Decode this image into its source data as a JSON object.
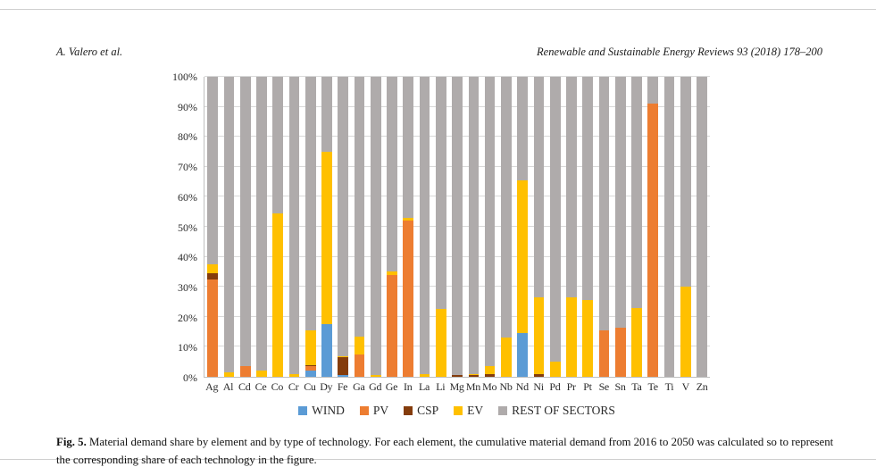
{
  "page": {
    "header_left": "A. Valero et al.",
    "header_right": "Renewable and Sustainable Energy Reviews 93 (2018) 178–200"
  },
  "figure": {
    "caption_label": "Fig. 5.",
    "caption_text": " Material demand share by element and by type of technology. For each element, the cumulative material demand from 2016 to 2050 was calculated so to represent the corresponding share of each technology in the figure."
  },
  "chart_data": {
    "type": "bar",
    "stacked": true,
    "title": "",
    "xlabel": "",
    "ylabel": "",
    "ylim": [
      0,
      100
    ],
    "grid": true,
    "legend_position": "bottom",
    "y_ticks": [
      "0%",
      "10%",
      "20%",
      "30%",
      "40%",
      "50%",
      "60%",
      "70%",
      "80%",
      "90%",
      "100%"
    ],
    "categories": [
      "Ag",
      "Al",
      "Cd",
      "Ce",
      "Co",
      "Cr",
      "Cu",
      "Dy",
      "Fe",
      "Ga",
      "Gd",
      "Ge",
      "In",
      "La",
      "Li",
      "Mg",
      "Mn",
      "Mo",
      "Nb",
      "Nd",
      "Ni",
      "Pd",
      "Pr",
      "Pt",
      "Se",
      "Sn",
      "Ta",
      "Te",
      "Ti",
      "V",
      "Zn"
    ],
    "series": [
      {
        "name": "WIND",
        "color": "#5B9BD5",
        "values": [
          0,
          0,
          0,
          0,
          0,
          0,
          2,
          17.5,
          0.5,
          0,
          0,
          0,
          0,
          0,
          0,
          0,
          0,
          0,
          0,
          14.5,
          0,
          0,
          0,
          0,
          0,
          0,
          0,
          0,
          0,
          0,
          0
        ]
      },
      {
        "name": "PV",
        "color": "#ED7D31",
        "values": [
          32.5,
          0,
          3.5,
          0,
          0,
          0,
          1.5,
          0,
          0,
          7.5,
          0,
          34,
          52,
          0,
          0,
          0,
          0,
          0,
          0,
          0,
          0,
          0,
          0,
          0,
          15.5,
          16.5,
          0,
          91,
          0,
          0,
          0
        ]
      },
      {
        "name": "CSP",
        "color": "#843C0C",
        "values": [
          2,
          0,
          0,
          0,
          0,
          0,
          0.5,
          0,
          6,
          0,
          0,
          0,
          0,
          0,
          0,
          0.5,
          0.5,
          1,
          0,
          0,
          1,
          0,
          0,
          0,
          0,
          0,
          0,
          0,
          0,
          0,
          0
        ]
      },
      {
        "name": "EV",
        "color": "#FFC000",
        "values": [
          3,
          1.5,
          0,
          2,
          54.5,
          1,
          11.5,
          57.5,
          0.5,
          6,
          0.5,
          1,
          1,
          1,
          22.5,
          0,
          0.5,
          2.5,
          13,
          51,
          25.5,
          5,
          26.5,
          25.5,
          0,
          0,
          23,
          0,
          0,
          30,
          0
        ]
      },
      {
        "name": "REST OF SECTORS",
        "color": "#AFABAB",
        "values": [
          62.5,
          98.5,
          96.5,
          98,
          45.5,
          99,
          84.5,
          25,
          93,
          86.5,
          99.5,
          65,
          47,
          99,
          77.5,
          99.5,
          99,
          96.5,
          87,
          34.5,
          73.5,
          95,
          73.5,
          74.5,
          84.5,
          83.5,
          77,
          9,
          100,
          70,
          100
        ]
      }
    ]
  }
}
